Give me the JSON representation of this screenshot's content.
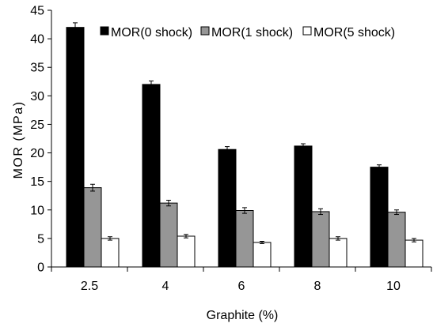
{
  "chart_data": {
    "type": "bar",
    "title": "",
    "xlabel": "Graphite (%)",
    "ylabel": "MOR (MPa)",
    "ylim": [
      0,
      45
    ],
    "yticks": [
      "0",
      "5",
      "10",
      "15",
      "20",
      "25",
      "30",
      "35",
      "40",
      "45"
    ],
    "categories": [
      "2.5",
      "4",
      "6",
      "8",
      "10"
    ],
    "legend_position": "top-right",
    "grid": false,
    "series": [
      {
        "name": "MOR(0 shock)",
        "color": "#000000",
        "values": [
          42.0,
          32.0,
          20.6,
          21.2,
          17.5
        ],
        "errors": [
          0.8,
          0.6,
          0.5,
          0.4,
          0.4
        ]
      },
      {
        "name": "MOR(1 shock)",
        "color": "#969696",
        "values": [
          13.9,
          11.2,
          9.9,
          9.7,
          9.6
        ],
        "errors": [
          0.6,
          0.5,
          0.5,
          0.5,
          0.4
        ]
      },
      {
        "name": "MOR(5 shock)",
        "color": "#ffffff",
        "values": [
          5.0,
          5.4,
          4.3,
          5.0,
          4.7
        ],
        "errors": [
          0.3,
          0.3,
          0.2,
          0.3,
          0.3
        ]
      }
    ]
  }
}
